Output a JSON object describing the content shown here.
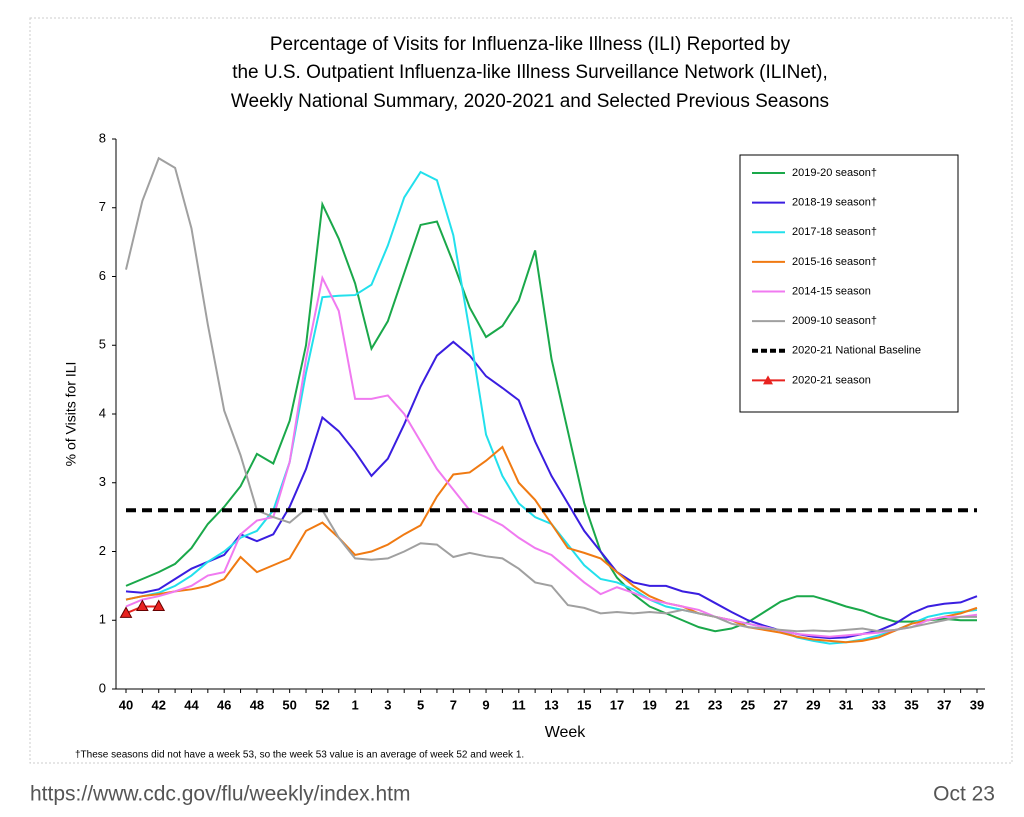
{
  "chart_data": {
    "type": "line",
    "title": [
      "Percentage of Visits for Influenza-like Illness (ILI) Reported by",
      "the U.S. Outpatient Influenza-like Illness Surveillance Network (ILINet),",
      "Weekly National Summary, 2020-2021 and Selected Previous Seasons"
    ],
    "xlabel": "Week",
    "ylabel": "% of Visits for ILI",
    "footnote": "†These seasons did not have a week 53, so the week 53 value is an average of week 52 and week 1.",
    "categories": [
      "40",
      null,
      "42",
      null,
      "44",
      null,
      "46",
      null,
      "48",
      null,
      "50",
      null,
      "52",
      null,
      "1",
      null,
      "3",
      null,
      "5",
      null,
      "7",
      null,
      "9",
      null,
      "11",
      null,
      "13",
      null,
      "15",
      null,
      "17",
      null,
      "19",
      null,
      "21",
      null,
      "23",
      null,
      "25",
      null,
      "27",
      null,
      "29",
      null,
      "31",
      null,
      "33",
      null,
      "35",
      null,
      "37",
      null,
      "39"
    ],
    "ylim": [
      0,
      8
    ],
    "yticks": [
      0,
      1,
      2,
      3,
      4,
      5,
      6,
      7,
      8
    ],
    "legend": "upper right",
    "series": [
      {
        "name": "2019-20 season†",
        "color": "#1aa84a",
        "values": [
          1.5,
          1.6,
          1.7,
          1.82,
          2.05,
          2.4,
          2.65,
          2.95,
          3.42,
          3.28,
          3.9,
          5.0,
          7.05,
          6.55,
          5.9,
          4.95,
          5.35,
          6.05,
          6.75,
          6.8,
          6.2,
          5.55,
          5.12,
          5.28,
          5.65,
          6.38,
          4.8,
          3.75,
          2.7,
          2.0,
          1.62,
          1.38,
          1.2,
          1.1,
          1.0,
          0.9,
          0.84,
          0.88,
          0.97,
          1.12,
          1.27,
          1.35,
          1.35,
          1.28,
          1.2,
          1.14,
          1.05,
          0.98,
          0.98,
          1.0,
          1.02,
          1.0,
          1.0
        ]
      },
      {
        "name": "2018-19 season†",
        "color": "#3a1ee0",
        "values": [
          1.42,
          1.4,
          1.45,
          1.6,
          1.75,
          1.85,
          1.95,
          2.25,
          2.15,
          2.25,
          2.65,
          3.2,
          3.95,
          3.75,
          3.45,
          3.1,
          3.35,
          3.85,
          4.4,
          4.85,
          5.05,
          4.85,
          4.55,
          4.38,
          4.2,
          3.6,
          3.1,
          2.7,
          2.3,
          2.0,
          1.7,
          1.55,
          1.5,
          1.5,
          1.42,
          1.38,
          1.25,
          1.12,
          1.0,
          0.92,
          0.85,
          0.8,
          0.76,
          0.74,
          0.75,
          0.8,
          0.85,
          0.95,
          1.1,
          1.2,
          1.24,
          1.26,
          1.35
        ]
      },
      {
        "name": "2017-18 season†",
        "color": "#22e0ec",
        "values": [
          1.3,
          1.35,
          1.4,
          1.5,
          1.65,
          1.85,
          2.0,
          2.2,
          2.3,
          2.6,
          3.3,
          4.6,
          5.7,
          5.72,
          5.73,
          5.88,
          6.45,
          7.15,
          7.52,
          7.4,
          6.6,
          5.2,
          3.7,
          3.1,
          2.7,
          2.5,
          2.4,
          2.1,
          1.8,
          1.6,
          1.55,
          1.45,
          1.3,
          1.2,
          1.15,
          1.1,
          1.05,
          1.0,
          0.95,
          0.9,
          0.85,
          0.75,
          0.7,
          0.66,
          0.68,
          0.72,
          0.78,
          0.85,
          0.95,
          1.05,
          1.1,
          1.12,
          1.15
        ]
      },
      {
        "name": "2015-16 season†",
        "color": "#f07a12",
        "values": [
          1.3,
          1.35,
          1.38,
          1.42,
          1.45,
          1.5,
          1.6,
          1.92,
          1.7,
          1.8,
          1.9,
          2.3,
          2.42,
          2.2,
          1.95,
          2.0,
          2.1,
          2.25,
          2.38,
          2.8,
          3.12,
          3.15,
          3.32,
          3.52,
          3.0,
          2.75,
          2.4,
          2.05,
          1.98,
          1.9,
          1.7,
          1.5,
          1.35,
          1.25,
          1.2,
          1.1,
          1.05,
          1.0,
          0.9,
          0.86,
          0.82,
          0.76,
          0.72,
          0.7,
          0.68,
          0.7,
          0.75,
          0.85,
          0.95,
          1.0,
          1.05,
          1.1,
          1.18
        ]
      },
      {
        "name": "2014-15 season",
        "color": "#f07af0",
        "values": [
          1.2,
          1.3,
          1.35,
          1.42,
          1.5,
          1.65,
          1.7,
          2.25,
          2.45,
          2.5,
          3.3,
          4.8,
          5.98,
          5.5,
          4.22,
          4.22,
          4.27,
          4.0,
          3.6,
          3.2,
          2.9,
          2.6,
          2.5,
          2.38,
          2.2,
          2.05,
          1.95,
          1.75,
          1.55,
          1.38,
          1.48,
          1.4,
          1.3,
          1.25,
          1.2,
          1.15,
          1.05,
          1.0,
          0.95,
          0.9,
          0.85,
          0.8,
          0.78,
          0.76,
          0.78,
          0.8,
          0.82,
          0.86,
          0.9,
          1.0,
          1.05,
          1.05,
          1.08
        ]
      },
      {
        "name": "2009-10 season†",
        "color": "#a0a0a0",
        "values": [
          6.1,
          7.1,
          7.72,
          7.58,
          6.7,
          5.3,
          4.05,
          3.4,
          2.6,
          2.5,
          2.42,
          2.62,
          2.6,
          2.2,
          1.9,
          1.88,
          1.9,
          2.0,
          2.12,
          2.1,
          1.92,
          1.98,
          1.93,
          1.9,
          1.75,
          1.55,
          1.5,
          1.22,
          1.18,
          1.1,
          1.12,
          1.1,
          1.12,
          1.1,
          1.15,
          1.1,
          1.05,
          0.95,
          0.9,
          0.88,
          0.86,
          0.84,
          0.85,
          0.84,
          0.86,
          0.88,
          0.84,
          0.86,
          0.9,
          0.95,
          1.0,
          1.05,
          1.05
        ]
      },
      {
        "name": "2020-21 National Baseline",
        "color": "#000000",
        "style": "dashed",
        "values": [
          2.6,
          2.6,
          2.6,
          2.6,
          2.6,
          2.6,
          2.6,
          2.6,
          2.6,
          2.6,
          2.6,
          2.6,
          2.6,
          2.6,
          2.6,
          2.6,
          2.6,
          2.6,
          2.6,
          2.6,
          2.6,
          2.6,
          2.6,
          2.6,
          2.6,
          2.6,
          2.6,
          2.6,
          2.6,
          2.6,
          2.6,
          2.6,
          2.6,
          2.6,
          2.6,
          2.6,
          2.6,
          2.6,
          2.6,
          2.6,
          2.6,
          2.6,
          2.6,
          2.6,
          2.6,
          2.6,
          2.6,
          2.6,
          2.6,
          2.6,
          2.6,
          2.6,
          2.6
        ]
      },
      {
        "name": "2020-21 season",
        "color": "#e8231f",
        "marker": "triangle",
        "values": [
          1.1,
          1.2,
          1.2,
          null,
          null,
          null,
          null,
          null,
          null,
          null,
          null,
          null,
          null,
          null,
          null,
          null,
          null,
          null,
          null,
          null,
          null,
          null,
          null,
          null,
          null,
          null,
          null,
          null,
          null,
          null,
          null,
          null,
          null,
          null,
          null,
          null,
          null,
          null,
          null,
          null,
          null,
          null,
          null,
          null,
          null,
          null,
          null,
          null,
          null,
          null,
          null,
          null,
          null
        ]
      }
    ]
  },
  "footer": {
    "url": "https://www.cdc.gov/flu/weekly/index.htm",
    "date": "Oct 23"
  }
}
